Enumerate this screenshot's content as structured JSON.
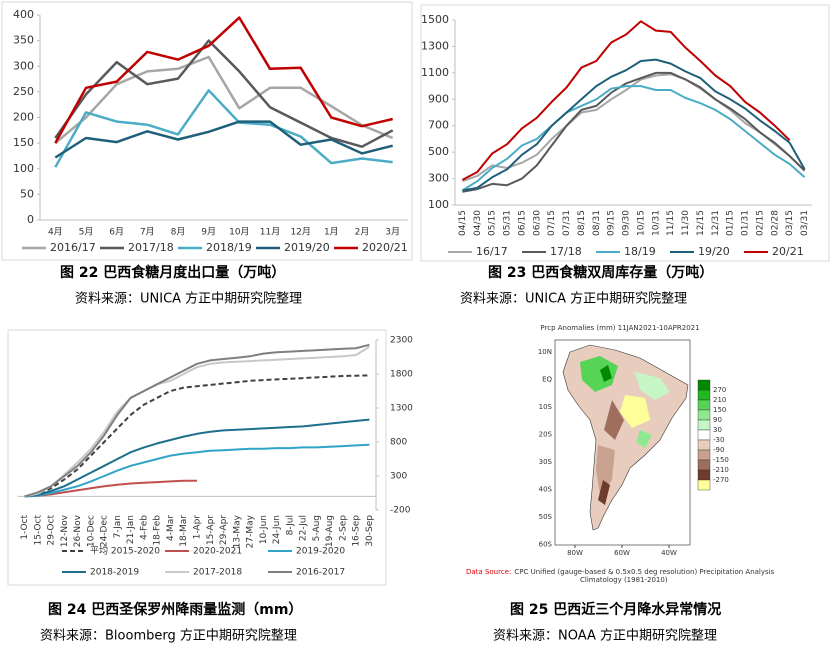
{
  "chart_data": [
    {
      "type": "line",
      "title": "图 22  巴西食糖月度出口量（万吨）",
      "source": "资料来源：UNICA   方正中期研究院整理",
      "categories": [
        "4月",
        "5月",
        "6月",
        "7月",
        "8月",
        "9月",
        "10月",
        "11月",
        "12月",
        "1月",
        "2月",
        "3月"
      ],
      "ylim": [
        0,
        400
      ],
      "yticks": [
        0,
        50,
        100,
        150,
        200,
        250,
        300,
        350,
        400
      ],
      "series": [
        {
          "name": "2016/17",
          "color": "#a6a6a6",
          "values": [
            150,
            200,
            265,
            290,
            295,
            318,
            218,
            258,
            258,
            222,
            185,
            160
          ]
        },
        {
          "name": "2017/18",
          "color": "#595959",
          "values": [
            160,
            245,
            308,
            265,
            276,
            350,
            290,
            220,
            190,
            160,
            143,
            175
          ]
        },
        {
          "name": "2018/19",
          "color": "#4bacc6",
          "values": [
            103,
            210,
            192,
            186,
            167,
            253,
            190,
            186,
            163,
            111,
            120,
            113
          ]
        },
        {
          "name": "2019/20",
          "color": "#1f5f7a",
          "values": [
            122,
            160,
            152,
            173,
            157,
            172,
            192,
            192,
            147,
            157,
            130,
            145
          ]
        },
        {
          "name": "2020/21",
          "color": "#c00000",
          "values": [
            150,
            258,
            270,
            328,
            313,
            340,
            395,
            295,
            297,
            200,
            183,
            197
          ]
        }
      ]
    },
    {
      "type": "line",
      "title": "图 23  巴西食糖双周库存量（万吨）",
      "source": "资料来源：UNICA   方正中期研究院整理",
      "categories": [
        "04/15",
        "04/30",
        "05/15",
        "05/31",
        "06/15",
        "06/30",
        "07/15",
        "07/31",
        "08/15",
        "08/31",
        "09/15",
        "09/30",
        "10/15",
        "10/31",
        "11/15",
        "11/30",
        "12/15",
        "12/31",
        "01/15",
        "01/31",
        "02/15",
        "02/28",
        "03/15",
        "03/31"
      ],
      "ylim": [
        100,
        1500
      ],
      "yticks": [
        100,
        300,
        500,
        700,
        900,
        1100,
        1300,
        1500
      ],
      "series": [
        {
          "name": "16/17",
          "color": "#a6a6a6",
          "values": [
            280,
            320,
            400,
            380,
            420,
            480,
            600,
            700,
            800,
            820,
            900,
            970,
            1050,
            1080,
            1090,
            1050,
            980,
            900,
            820,
            720,
            650,
            560,
            470,
            360
          ]
        },
        {
          "name": "17/18",
          "color": "#595959",
          "values": [
            200,
            220,
            260,
            250,
            300,
            400,
            550,
            700,
            820,
            850,
            950,
            1020,
            1060,
            1100,
            1100,
            1050,
            990,
            900,
            830,
            750,
            650,
            570,
            470,
            360
          ]
        },
        {
          "name": "18/19",
          "color": "#4bacc6",
          "values": [
            210,
            280,
            380,
            450,
            550,
            600,
            700,
            800,
            850,
            900,
            980,
            1000,
            1000,
            970,
            970,
            910,
            870,
            820,
            750,
            660,
            570,
            480,
            410,
            310
          ]
        },
        {
          "name": "19/20",
          "color": "#1f5f7a",
          "values": [
            210,
            230,
            310,
            370,
            480,
            560,
            700,
            800,
            900,
            1000,
            1070,
            1120,
            1190,
            1200,
            1170,
            1110,
            1060,
            960,
            900,
            830,
            740,
            660,
            570,
            370
          ]
        },
        {
          "name": "20/21",
          "color": "#c00000",
          "values": [
            290,
            350,
            490,
            560,
            680,
            760,
            880,
            990,
            1140,
            1190,
            1330,
            1390,
            1490,
            1420,
            1410,
            1290,
            1190,
            1080,
            1000,
            880,
            800,
            700,
            590,
            null
          ]
        }
      ]
    },
    {
      "type": "line",
      "title": "图 24  巴西圣保罗州降雨量监测（mm）",
      "source": "资料来源：Bloomberg   方正中期研究院整理",
      "categories": [
        "1-Oct",
        "15-Oct",
        "29-Oct",
        "12-Nov",
        "26-Nov",
        "10-Dec",
        "24-Dec",
        "7-Jan",
        "21-Jan",
        "4-Feb",
        "18-Feb",
        "4-Mar",
        "18-Mar",
        "1-Apr",
        "15-Apr",
        "29-Apr",
        "13-May",
        "27-May",
        "10-Jun",
        "24-Jun",
        "8-Jul",
        "22-Jul",
        "5-Aug",
        "19-Aug",
        "2-Sep",
        "16-Sep",
        "30-Sep"
      ],
      "ylim": [
        -200,
        2300
      ],
      "yticks": [
        -200,
        300,
        800,
        1300,
        1800,
        2300
      ],
      "y_axis_side": "right",
      "series": [
        {
          "name": "平均 2015-2020",
          "color": "#404040",
          "dash": true,
          "values": [
            0,
            30,
            120,
            250,
            400,
            600,
            800,
            1000,
            1200,
            1350,
            1450,
            1550,
            1600,
            1620,
            1640,
            1660,
            1680,
            1700,
            1710,
            1720,
            1730,
            1740,
            1750,
            1760,
            1770,
            1775,
            1780
          ]
        },
        {
          "name": "2020-2021",
          "color": "#c0504d",
          "values": [
            0,
            10,
            30,
            60,
            90,
            120,
            150,
            170,
            190,
            200,
            210,
            220,
            230,
            230,
            null,
            null,
            null,
            null,
            null,
            null,
            null,
            null,
            null,
            null,
            null,
            null,
            null
          ]
        },
        {
          "name": "2019-2020",
          "color": "#31a3c9",
          "values": [
            0,
            10,
            50,
            100,
            150,
            220,
            300,
            380,
            450,
            500,
            550,
            600,
            630,
            650,
            670,
            680,
            690,
            700,
            700,
            710,
            710,
            720,
            720,
            730,
            740,
            750,
            760
          ]
        },
        {
          "name": "2018-2019",
          "color": "#1f6e8c",
          "values": [
            0,
            20,
            80,
            150,
            250,
            350,
            450,
            550,
            650,
            720,
            780,
            830,
            880,
            920,
            950,
            970,
            980,
            990,
            1000,
            1010,
            1020,
            1030,
            1050,
            1070,
            1090,
            1110,
            1130
          ]
        },
        {
          "name": "2017-2018",
          "color": "#c8c8c8",
          "values": [
            0,
            40,
            150,
            320,
            500,
            700,
            950,
            1250,
            1450,
            1550,
            1650,
            1700,
            1800,
            1900,
            1950,
            1970,
            1980,
            1990,
            2000,
            2010,
            2020,
            2030,
            2040,
            2050,
            2060,
            2080,
            2200
          ]
        },
        {
          "name": "2016-2017",
          "color": "#7f7f7f",
          "values": [
            0,
            60,
            150,
            300,
            450,
            650,
            900,
            1200,
            1450,
            1550,
            1650,
            1750,
            1850,
            1950,
            2000,
            2020,
            2040,
            2060,
            2100,
            2120,
            2130,
            2140,
            2150,
            2160,
            2170,
            2180,
            2230
          ]
        }
      ]
    }
  ],
  "map": {
    "title": "图 25  巴西近三个月降水异常情况",
    "source": "资料来源：NOAA   方正中期研究院整理",
    "heading": "Prcp Anomalies (mm) 11JAN2021-10APR2021",
    "lat_labels": [
      "10N",
      "EQ",
      "10S",
      "20S",
      "30S",
      "40S",
      "50S",
      "60S"
    ],
    "lon_labels": [
      "80W",
      "60W",
      "40W"
    ],
    "colorbar_ticks": [
      270,
      210,
      150,
      90,
      30,
      -30,
      -90,
      -150,
      -210,
      -270
    ],
    "colorbar_colors": [
      "#008a00",
      "#1fb81f",
      "#55d455",
      "#8fe88f",
      "#c6f6c6",
      "#ffffff",
      "#e8cdbf",
      "#c9a190",
      "#a06e5c",
      "#6e3c2c",
      "#ffff99"
    ],
    "source_label": "Data Source:",
    "source_text": "CPC Unified (gauge-based & 0.5x0.5 deg resolution) Precipitation Analysis",
    "climatology": "Climatology (1981-2010)"
  }
}
